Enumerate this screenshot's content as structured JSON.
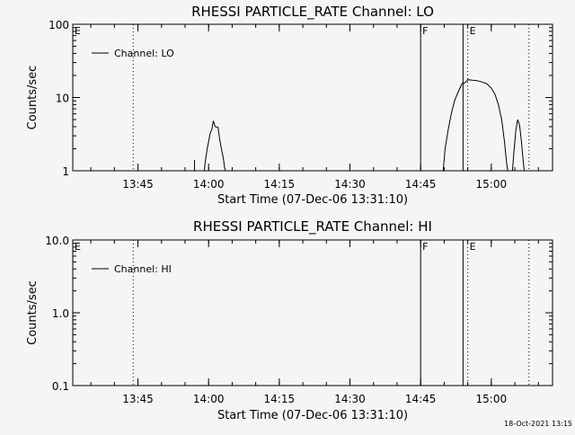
{
  "footer": {
    "timestamp": "18-Oct-2021 13:15"
  },
  "chart_data": [
    {
      "type": "line",
      "title": "RHESSI PARTICLE_RATE Channel: LO",
      "xlabel": "Start Time (07-Dec-06 13:31:10)",
      "ylabel": "Counts/sec",
      "y_scale": "log",
      "ylim": [
        1,
        100
      ],
      "y_ticks": [
        {
          "v": 1,
          "label": "1"
        },
        {
          "v": 10,
          "label": "10"
        },
        {
          "v": 100,
          "label": "100"
        }
      ],
      "x_ticks": [
        "13:45",
        "14:00",
        "14:15",
        "14:30",
        "14:45",
        "15:00"
      ],
      "legend": {
        "position": "top-left",
        "label": "Channel: LO"
      },
      "markers": [
        {
          "time": "13:31",
          "style": "none",
          "label": "E"
        },
        {
          "time": "13:44",
          "style": "dotted",
          "label": ""
        },
        {
          "time": "14:45",
          "style": "solid",
          "label": "F"
        },
        {
          "time": "14:54",
          "style": "solid",
          "label": ""
        },
        {
          "time": "14:55",
          "style": "dotted",
          "label": "E"
        },
        {
          "time": "15:08",
          "style": "dotted",
          "label": ""
        }
      ],
      "series": [
        {
          "segments": [
            [
              [
                "13:57.0",
                1
              ],
              [
                "13:57.0",
                1.4
              ]
            ],
            [
              [
                "13:59.1",
                1
              ],
              [
                "13:59.2",
                1.2
              ],
              [
                "13:59.4",
                1.5
              ],
              [
                "13:59.7",
                2.0
              ],
              [
                "14:00.0",
                2.5
              ],
              [
                "14:00.3",
                3.2
              ],
              [
                "14:00.7",
                3.7
              ],
              [
                "14:01.0",
                4.8
              ],
              [
                "14:01.4",
                4.0
              ],
              [
                "14:02.0",
                3.9
              ],
              [
                "14:02.3",
                2.8
              ],
              [
                "14:02.7",
                2.0
              ],
              [
                "14:03.1",
                1.5
              ],
              [
                "14:03.4",
                1.1
              ],
              [
                "14:03.6",
                1
              ]
            ],
            [
              [
                "14:49.8",
                1
              ],
              [
                "14:50.2",
                2
              ],
              [
                "14:50.8",
                3.5
              ],
              [
                "14:51.5",
                6
              ],
              [
                "14:52.2",
                9
              ],
              [
                "14:53.0",
                12
              ],
              [
                "14:53.8",
                15.5
              ],
              [
                "14:54.5",
                16
              ],
              [
                "14:55.0",
                17.5
              ],
              [
                "14:56.0",
                17.2
              ],
              [
                "14:57.0",
                17.0
              ],
              [
                "14:58.0",
                16.3
              ],
              [
                "14:59.0",
                15.5
              ],
              [
                "15:00.0",
                13.5
              ],
              [
                "15:00.8",
                11
              ],
              [
                "15:01.5",
                8
              ],
              [
                "15:02.2",
                5
              ],
              [
                "15:02.8",
                2.5
              ],
              [
                "15:03.3",
                1.2
              ],
              [
                "15:03.5",
                1
              ]
            ],
            [
              [
                "15:04.5",
                1
              ],
              [
                "15:04.8",
                1.8
              ],
              [
                "15:05.2",
                3.5
              ],
              [
                "15:05.6",
                5
              ],
              [
                "15:06.0",
                4.2
              ],
              [
                "15:06.4",
                2.5
              ],
              [
                "15:06.8",
                1.3
              ],
              [
                "15:07.0",
                1
              ]
            ]
          ]
        }
      ]
    },
    {
      "type": "line",
      "title": "RHESSI PARTICLE_RATE Channel: HI",
      "xlabel": "Start Time (07-Dec-06 13:31:10)",
      "ylabel": "Counts/sec",
      "y_scale": "log",
      "ylim": [
        0.1,
        10
      ],
      "y_ticks": [
        {
          "v": 0.1,
          "label": "0.1"
        },
        {
          "v": 1,
          "label": "1.0"
        },
        {
          "v": 10,
          "label": "10.0"
        }
      ],
      "x_ticks": [
        "13:45",
        "14:00",
        "14:15",
        "14:30",
        "14:45",
        "15:00"
      ],
      "legend": {
        "position": "top-left",
        "label": "Channel: HI"
      },
      "markers": [
        {
          "time": "13:31",
          "style": "none",
          "label": "E"
        },
        {
          "time": "13:44",
          "style": "dotted",
          "label": ""
        },
        {
          "time": "14:45",
          "style": "solid",
          "label": "F"
        },
        {
          "time": "14:54",
          "style": "solid",
          "label": ""
        },
        {
          "time": "14:55",
          "style": "dotted",
          "label": "E"
        },
        {
          "time": "15:08",
          "style": "dotted",
          "label": ""
        }
      ],
      "series": [
        {
          "segments": []
        }
      ]
    }
  ]
}
